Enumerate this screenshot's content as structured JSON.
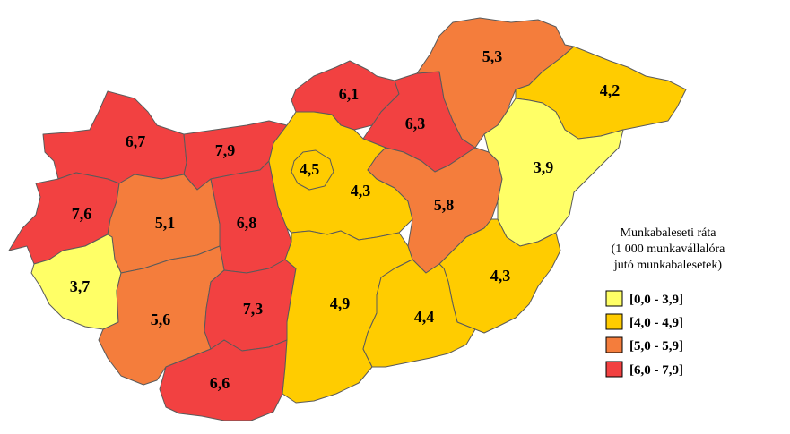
{
  "legend": {
    "title_lines": [
      "Munkabaleseti ráta",
      "(1 000 munkavállalóra",
      "jutó munkabalesetek)"
    ],
    "classes": [
      {
        "label": "[0,0 - 3,9]",
        "color": "#ffff66"
      },
      {
        "label": "[4,0 - 4,9]",
        "color": "#ffcc00"
      },
      {
        "label": "[5,0 - 5,9]",
        "color": "#f47d3c"
      },
      {
        "label": "[6,0 - 7,9]",
        "color": "#f24141"
      }
    ]
  },
  "regions": [
    {
      "id": "gyor",
      "value": "6,7",
      "class": 3
    },
    {
      "id": "komarom",
      "value": "7,9",
      "class": 3
    },
    {
      "id": "vas",
      "value": "7,6",
      "class": 3
    },
    {
      "id": "veszprem",
      "value": "5,1",
      "class": 2
    },
    {
      "id": "fejer",
      "value": "6,8",
      "class": 3
    },
    {
      "id": "zala",
      "value": "3,7",
      "class": 0
    },
    {
      "id": "somogy",
      "value": "5,6",
      "class": 2
    },
    {
      "id": "tolna",
      "value": "7,3",
      "class": 3
    },
    {
      "id": "baranya",
      "value": "6,6",
      "class": 3
    },
    {
      "id": "nograd",
      "value": "6,1",
      "class": 3
    },
    {
      "id": "heves",
      "value": "6,3",
      "class": 3
    },
    {
      "id": "borsod",
      "value": "5,3",
      "class": 2
    },
    {
      "id": "szabolcs",
      "value": "4,2",
      "class": 1
    },
    {
      "id": "budapest",
      "value": "4,5",
      "class": 1
    },
    {
      "id": "pest",
      "value": "4,3",
      "class": 1
    },
    {
      "id": "szolnok",
      "value": "5,8",
      "class": 2
    },
    {
      "id": "hajdu",
      "value": "3,9",
      "class": 0
    },
    {
      "id": "bekes",
      "value": "4,3",
      "class": 1
    },
    {
      "id": "bacs",
      "value": "4,9",
      "class": 1
    },
    {
      "id": "csongrad",
      "value": "4,4",
      "class": 1
    }
  ]
}
